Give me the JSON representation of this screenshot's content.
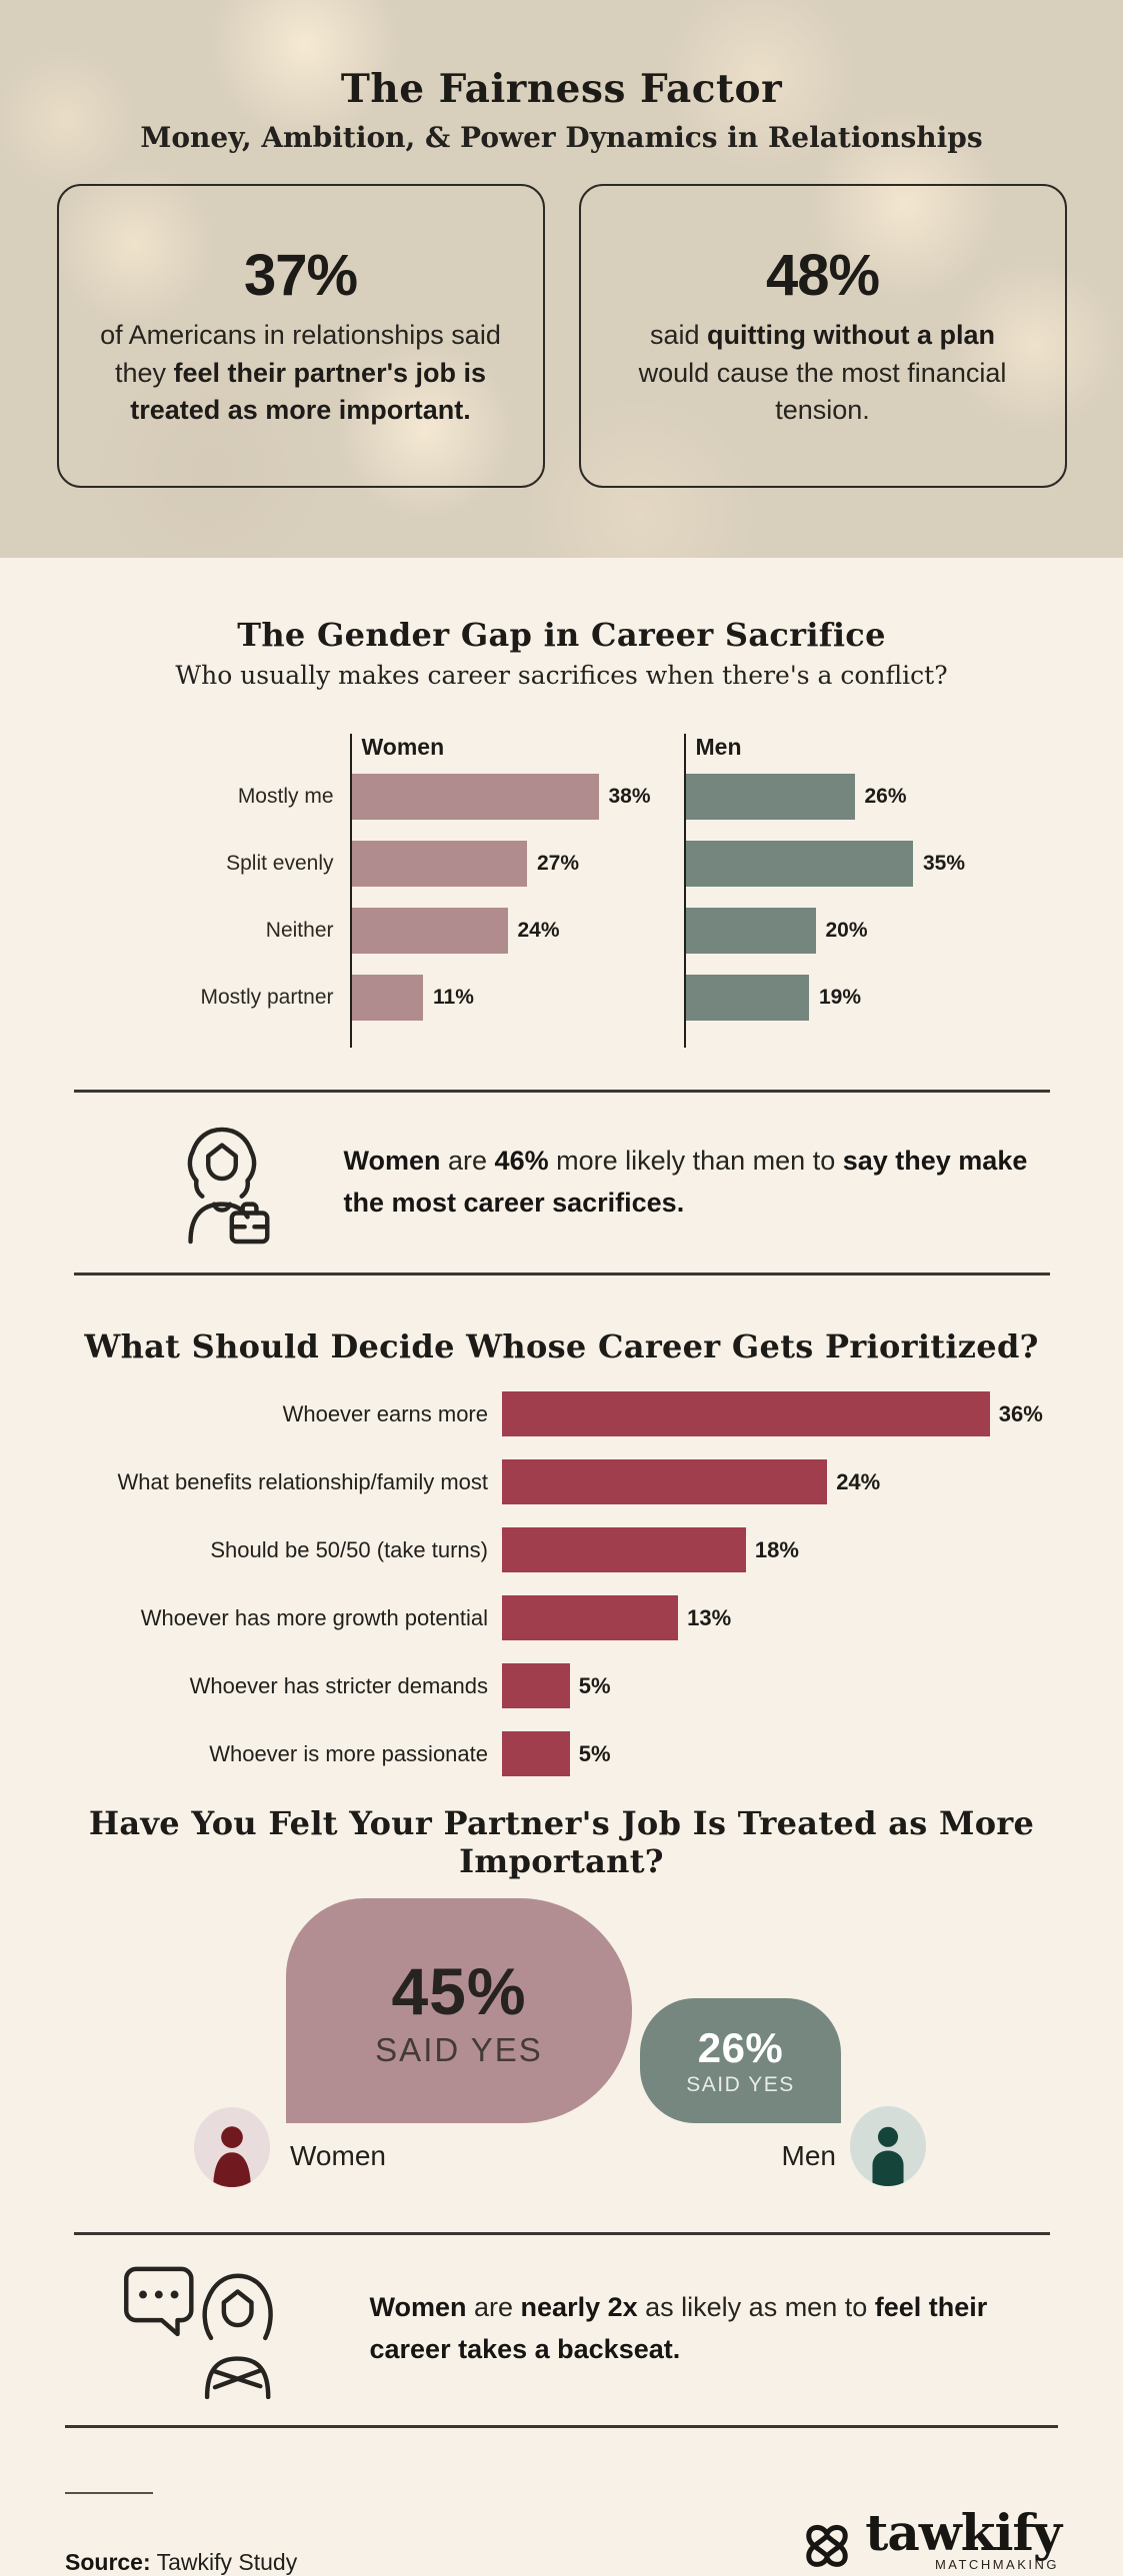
{
  "hero": {
    "title": "The Fairness Factor",
    "subtitle": "Money, Ambition, & Power Dynamics in Relationships",
    "stat_boxes": [
      {
        "value": "37%",
        "pre": "of Americans in relationships said they ",
        "bold": "feel their partner's job is treated as more important.",
        "post": ""
      },
      {
        "value": "48%",
        "pre": "said ",
        "bold": "quitting without a plan",
        "post": " would cause the most financial tension."
      }
    ]
  },
  "gender_section": {
    "title": "The Gender Gap in Career Sacrifice",
    "subtitle": "Who usually makes career sacrifices when there's a conflict?"
  },
  "callout1": {
    "b1": "Women",
    "t1": " are ",
    "b2": "46%",
    "t2": " more likely than men to ",
    "b3": "say they make the most career sacrifices."
  },
  "priority_section": {
    "title": "What Should Decide Whose Career Gets Prioritized?"
  },
  "yes_section": {
    "title": "Have You Felt Your Partner's Job Is Treated as More Important?"
  },
  "callout2": {
    "b1": "Women",
    "t1": " are ",
    "b2": "nearly 2x",
    "t2": " as likely as men to ",
    "b3": "feel their career takes a backseat."
  },
  "footer": {
    "source_label": "Source:",
    "source_value": " Tawkify Study",
    "brand": "tawkify",
    "brand_sub": "MATCHMAKING"
  },
  "colors": {
    "cream_bg": "#f7f1e7",
    "hero_bg": "#d9cfbd",
    "ink": "#211f1b",
    "women_bar": "#b08c8f",
    "men_bar": "#75867e",
    "priority_bar": "#a03e4d",
    "women_blob": "#b28e93",
    "men_blob": "#75877f",
    "women_icon": "#701a1f",
    "women_icon_bg": "#e8dcdc",
    "men_icon": "#14443a",
    "men_icon_bg": "#d5ddd8",
    "rule": "#3a3733"
  },
  "chart_data": [
    {
      "type": "bar",
      "orientation": "horizontal",
      "title": "The Gender Gap in Career Sacrifice",
      "subtitle": "Who usually makes career sacrifices when there's a conflict?",
      "categories": [
        "Mostly me",
        "Split evenly",
        "Neither",
        "Mostly partner"
      ],
      "series": [
        {
          "name": "Women",
          "color": "#b08c8f",
          "values": [
            38,
            27,
            24,
            11
          ],
          "labels": [
            "38%",
            "27%",
            "24%",
            "11%"
          ]
        },
        {
          "name": "Men",
          "color": "#75867e",
          "values": [
            26,
            35,
            20,
            19
          ],
          "labels": [
            "26%",
            "35%",
            "20%",
            "19%"
          ]
        }
      ],
      "xlim": [
        0,
        40
      ],
      "value_suffix": "%",
      "grid": false,
      "legend_position": "column-headers"
    },
    {
      "type": "bar",
      "orientation": "horizontal",
      "title": "What Should Decide Whose Career Gets Prioritized?",
      "categories": [
        "Whoever earns more",
        "What benefits relationship/family most",
        "Should be 50/50 (take turns)",
        "Whoever has more growth potential",
        "Whoever has stricter demands",
        "Whoever is more passionate"
      ],
      "values": [
        36,
        24,
        18,
        13,
        5,
        5
      ],
      "labels": [
        "36%",
        "24%",
        "18%",
        "13%",
        "5%",
        "5%"
      ],
      "color": "#a03e4d",
      "xlim": [
        0,
        40
      ],
      "value_suffix": "%",
      "grid": false
    },
    {
      "type": "comparison",
      "title": "Have You Felt Your Partner's Job Is Treated as More Important?",
      "groups": [
        {
          "label": "Women",
          "value": 45,
          "display": "45%",
          "caption": "SAID YES",
          "color": "#b28e93"
        },
        {
          "label": "Men",
          "value": 26,
          "display": "26%",
          "caption": "SAID YES",
          "color": "#75877f"
        }
      ]
    }
  ]
}
